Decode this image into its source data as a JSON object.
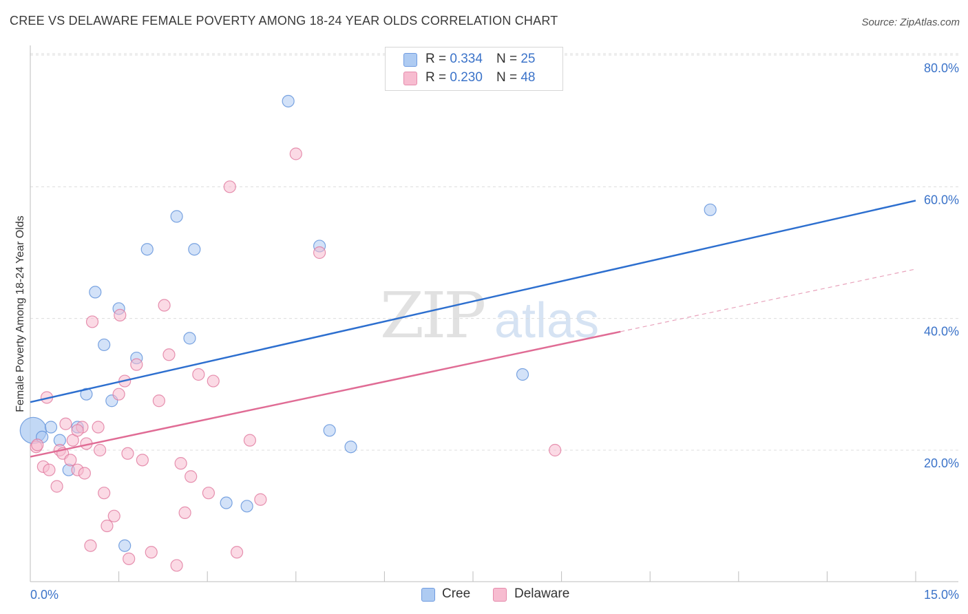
{
  "header": {
    "title": "CREE VS DELAWARE FEMALE POVERTY AMONG 18-24 YEAR OLDS CORRELATION CHART",
    "source": "Source: ZipAtlas.com"
  },
  "watermark": {
    "zip": "ZIP",
    "atlas": "atlas"
  },
  "legend": {
    "r_label": "R =",
    "n_label": "N =",
    "rows": [
      {
        "r": "0.334",
        "n": "25",
        "color": "#aecbf2"
      },
      {
        "r": "0.230",
        "n": "48",
        "color": "#f7bcd0"
      }
    ]
  },
  "bottom_legend": [
    {
      "label": "Cree",
      "color": "#aecbf2"
    },
    {
      "label": "Delaware",
      "color": "#f7bcd0"
    }
  ],
  "chart_data": {
    "type": "scatter",
    "title": "CREE VS DELAWARE FEMALE POVERTY AMONG 18-24 YEAR OLDS CORRELATION CHART",
    "xlabel": "",
    "ylabel": "Female Poverty Among 18-24 Year Olds",
    "xlim": [
      0,
      15
    ],
    "ylim": [
      0,
      82
    ],
    "x_tick_labels": [
      "0.0%",
      "15.0%"
    ],
    "y_ticks": [
      20,
      40,
      60,
      80
    ],
    "y_tick_labels": [
      "20.0%",
      "40.0%",
      "60.0%",
      "80.0%"
    ],
    "grid": true,
    "series": [
      {
        "name": "Cree",
        "color": "#5b8fd9",
        "fill": "#aecbf2",
        "points": [
          [
            0.05,
            23.0
          ],
          [
            0.2,
            22.0
          ],
          [
            0.35,
            23.5
          ],
          [
            0.5,
            21.5
          ],
          [
            0.65,
            17.0
          ],
          [
            0.8,
            23.5
          ],
          [
            0.95,
            28.5
          ],
          [
            1.1,
            44.0
          ],
          [
            1.25,
            36.0
          ],
          [
            1.38,
            27.5
          ],
          [
            1.5,
            41.5
          ],
          [
            1.6,
            5.5
          ],
          [
            1.8,
            34.0
          ],
          [
            1.98,
            50.5
          ],
          [
            2.48,
            55.5
          ],
          [
            2.7,
            37.0
          ],
          [
            2.78,
            50.5
          ],
          [
            3.32,
            12.0
          ],
          [
            3.67,
            11.5
          ],
          [
            4.37,
            73.0
          ],
          [
            4.9,
            51.0
          ],
          [
            5.07,
            23.0
          ],
          [
            5.43,
            20.5
          ],
          [
            8.34,
            31.5
          ],
          [
            11.52,
            56.5
          ]
        ],
        "trend": {
          "x": [
            0,
            15
          ],
          "y": [
            27.3,
            57.9
          ]
        }
      },
      {
        "name": "Delaware",
        "color": "#e0779c",
        "fill": "#f7bcd0",
        "points": [
          [
            0.1,
            20.5
          ],
          [
            0.22,
            17.5
          ],
          [
            0.28,
            28.0
          ],
          [
            0.32,
            17.0
          ],
          [
            0.45,
            14.5
          ],
          [
            0.5,
            20.0
          ],
          [
            0.55,
            19.5
          ],
          [
            0.6,
            24.0
          ],
          [
            0.68,
            18.5
          ],
          [
            0.72,
            21.5
          ],
          [
            0.8,
            17.0
          ],
          [
            0.88,
            23.5
          ],
          [
            0.92,
            16.5
          ],
          [
            0.95,
            21.0
          ],
          [
            1.05,
            39.5
          ],
          [
            1.02,
            5.5
          ],
          [
            1.15,
            23.5
          ],
          [
            1.18,
            20.0
          ],
          [
            1.25,
            13.5
          ],
          [
            1.3,
            8.5
          ],
          [
            1.42,
            10.0
          ],
          [
            1.5,
            28.5
          ],
          [
            1.52,
            40.5
          ],
          [
            1.6,
            30.5
          ],
          [
            1.65,
            19.5
          ],
          [
            1.67,
            3.5
          ],
          [
            1.8,
            33.0
          ],
          [
            1.9,
            18.5
          ],
          [
            2.05,
            4.5
          ],
          [
            2.18,
            27.5
          ],
          [
            2.27,
            42.0
          ],
          [
            2.35,
            34.5
          ],
          [
            2.48,
            2.5
          ],
          [
            2.55,
            18.0
          ],
          [
            2.62,
            10.5
          ],
          [
            2.72,
            16.0
          ],
          [
            2.85,
            31.5
          ],
          [
            3.02,
            13.5
          ],
          [
            3.1,
            30.5
          ],
          [
            3.38,
            60.0
          ],
          [
            3.5,
            4.5
          ],
          [
            3.72,
            21.5
          ],
          [
            3.9,
            12.5
          ],
          [
            4.5,
            65.0
          ],
          [
            4.9,
            50.0
          ],
          [
            8.89,
            20.0
          ],
          [
            0.12,
            20.8
          ],
          [
            0.8,
            23.0
          ]
        ],
        "trend": {
          "x": [
            0,
            10
          ],
          "y": [
            19.0,
            38.0
          ]
        },
        "trend_extension": {
          "x": [
            10,
            15
          ],
          "y": [
            38.0,
            47.5
          ]
        }
      }
    ]
  }
}
